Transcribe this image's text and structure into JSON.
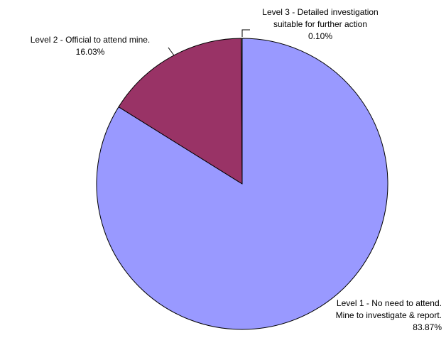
{
  "chart_data": {
    "type": "pie",
    "title": "",
    "start_angle_deg": 0,
    "direction": "clockwise",
    "slices": [
      {
        "label_lines": [
          "Level 1 - No need to attend.",
          "Mine to investigate & report."
        ],
        "value": 83.87,
        "value_label": "83.87%",
        "color": "#9999FF",
        "label_align": "end"
      },
      {
        "label_lines": [
          "Level 2 - Official to attend mine."
        ],
        "value": 16.03,
        "value_label": "16.03%",
        "color": "#993366",
        "label_align": "middle",
        "leader": true
      },
      {
        "label_lines": [
          "Level 3 - Detailed investigation",
          "suitable for further action"
        ],
        "value": 0.1,
        "value_label": "0.10%",
        "color": "#FFFFCC",
        "label_align": "middle",
        "leader": true
      }
    ]
  }
}
